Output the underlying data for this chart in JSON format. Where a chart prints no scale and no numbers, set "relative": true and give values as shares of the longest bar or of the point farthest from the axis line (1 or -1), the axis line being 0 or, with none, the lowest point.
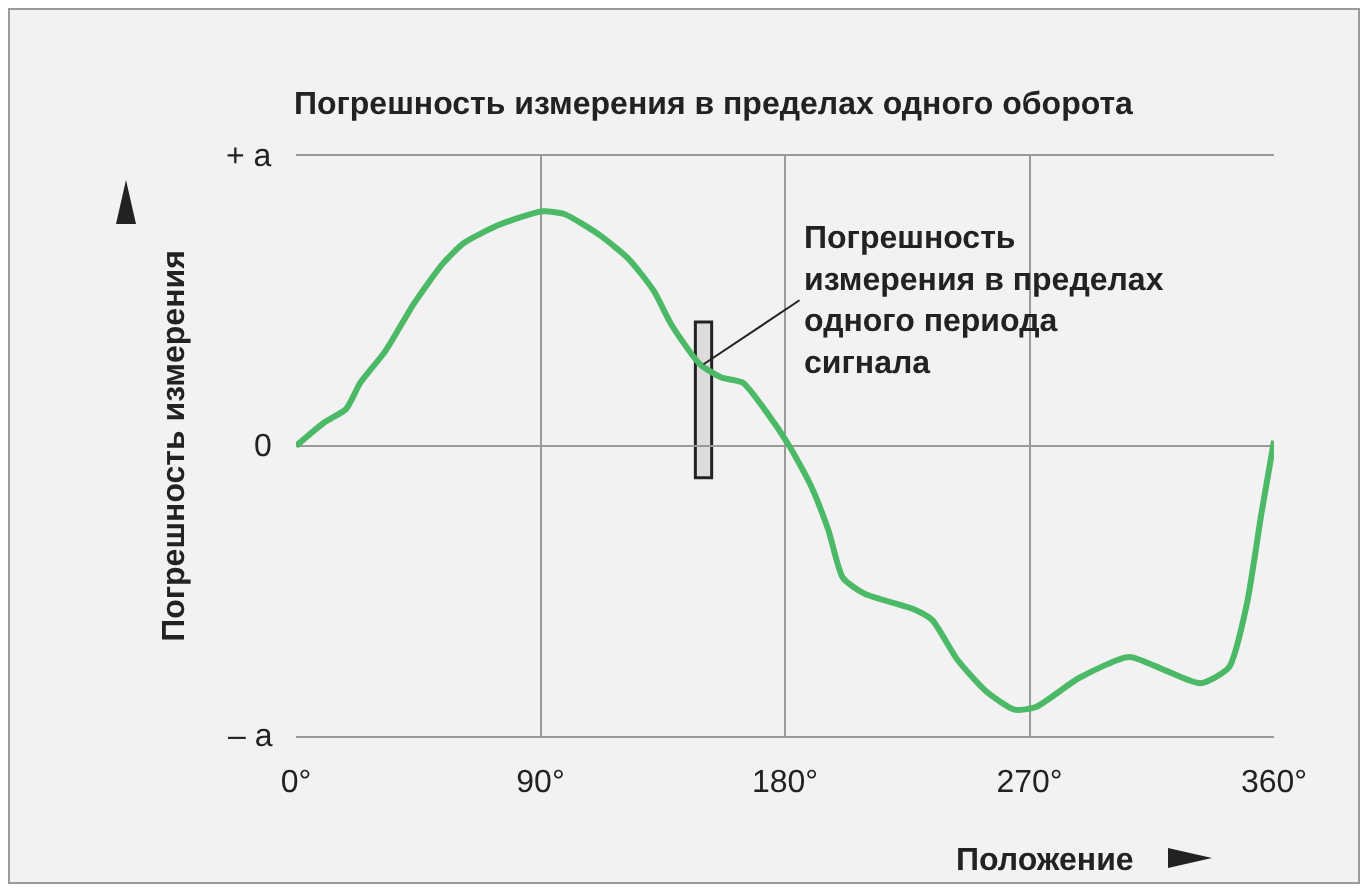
{
  "chart_data": {
    "type": "line",
    "title": "Погрешность измерения в пределах одного оборота",
    "xlabel": "Положение",
    "ylabel": "Погрешность измерения",
    "relative": true,
    "x": [
      0,
      10.5,
      18.4,
      23.7,
      32.9,
      43.4,
      53.9,
      61.8,
      75,
      90.8,
      98.7,
      111.8,
      122.4,
      131.6,
      138.2,
      148.7,
      156.6,
      164.5,
      172.4,
      181.6,
      189.5,
      196,
      201.3,
      209.2,
      227.6,
      234.2,
      243.4,
      254,
      264.5,
      272.4,
      288.2,
      306.6,
      319.7,
      332.9,
      343.4,
      350,
      355.3,
      360
    ],
    "series": [
      {
        "color": "#4cb966",
        "values": [
          0,
          0.09,
          0.14,
          0.24,
          0.36,
          0.54,
          0.69,
          0.77,
          0.84,
          0.89,
          0.88,
          0.8,
          0.71,
          0.59,
          0.46,
          0.31,
          0.26,
          0.24,
          0.14,
          0,
          -0.15,
          -0.32,
          -0.5,
          -0.56,
          -0.62,
          -0.66,
          -0.81,
          -0.93,
          -1,
          -0.99,
          -0.88,
          -0.8,
          -0.85,
          -0.9,
          -0.84,
          -0.6,
          -0.26,
          0.02
        ]
      }
    ],
    "xlim": [
      0,
      360
    ],
    "xticks": [
      {
        "value": 0,
        "label": "0°"
      },
      {
        "value": 90,
        "label": "90°"
      },
      {
        "value": 180,
        "label": "180°"
      },
      {
        "value": 270,
        "label": "270°"
      },
      {
        "value": 360,
        "label": "360°"
      }
    ],
    "grid": "x",
    "marker": "none",
    "line_style": "solid",
    "annotations": [
      "+ a",
      "0",
      "– a",
      {
        "text": "Погрешность измерения в пределах одного периода сигнала",
        "x": 150,
        "y": 0.31
      }
    ]
  }
}
